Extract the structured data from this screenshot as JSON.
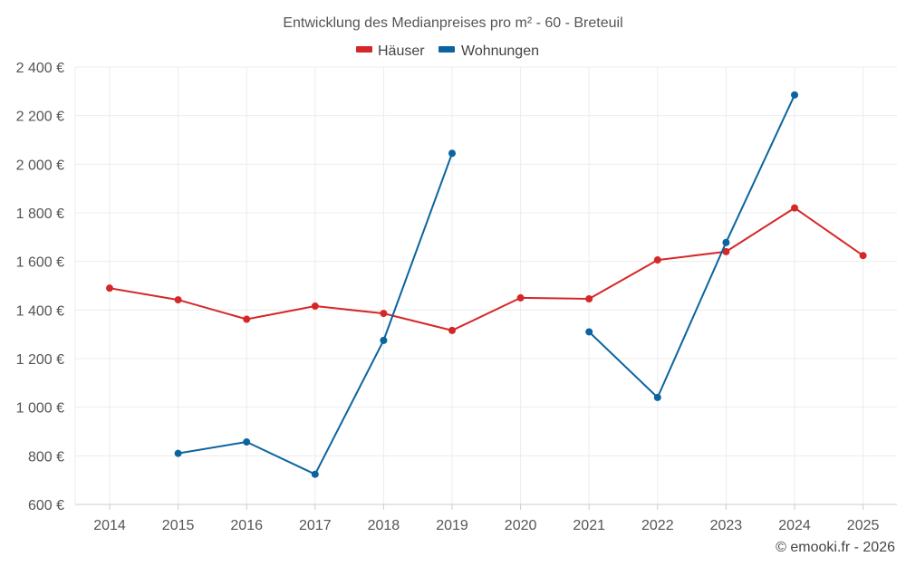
{
  "chart_data": {
    "type": "line",
    "title": "Entwicklung des Medianpreises pro m² - 60 - Breteuil",
    "categories": [
      "2014",
      "2015",
      "2016",
      "2017",
      "2018",
      "2019",
      "2020",
      "2021",
      "2022",
      "2023",
      "2024",
      "2025"
    ],
    "ylim": [
      600,
      2400
    ],
    "yticks": [
      600,
      800,
      1000,
      1200,
      1400,
      1600,
      1800,
      2000,
      2200,
      2400
    ],
    "ytick_labels": [
      "600 €",
      "800 €",
      "1 000 €",
      "1 200 €",
      "1 400 €",
      "1 600 €",
      "1 800 €",
      "2 000 €",
      "2 200 €",
      "2 400 €"
    ],
    "grid": true,
    "legend_position": "top-center",
    "series": [
      {
        "name": "Häuser",
        "color": "#d62728",
        "values": [
          1490,
          1442,
          1362,
          1416,
          1386,
          1316,
          1450,
          1446,
          1606,
          1640,
          1820,
          1624
        ]
      },
      {
        "name": "Wohnungen",
        "color": "#0b64a0",
        "values": [
          null,
          810,
          857,
          724,
          1275,
          2045,
          null,
          1310,
          1040,
          1678,
          2285,
          null
        ]
      }
    ],
    "credit": "© emooki.fr - 2026"
  }
}
